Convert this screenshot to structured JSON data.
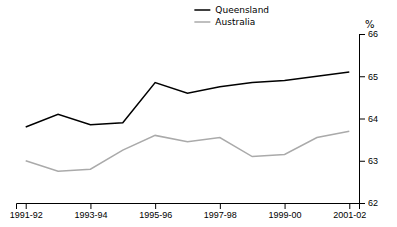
{
  "chart_data": {
    "type": "line",
    "ylabel": "%",
    "categories": [
      "1991-92",
      null,
      "1993-94",
      null,
      "1995-96",
      null,
      "1997-98",
      null,
      "1999-00",
      null,
      "2001-02"
    ],
    "series": [
      {
        "name": "Queensland",
        "color": "#000000",
        "values": [
          63.8,
          64.1,
          63.85,
          63.9,
          64.85,
          64.6,
          64.75,
          64.85,
          64.9,
          65.0,
          65.1
        ]
      },
      {
        "name": "Australia",
        "color": "#aaaaaa",
        "values": [
          63.0,
          62.75,
          62.8,
          63.25,
          63.6,
          63.45,
          63.55,
          63.1,
          63.15,
          63.55,
          63.7
        ]
      }
    ],
    "ylim": [
      62,
      66
    ],
    "yticks": [
      62,
      63,
      64,
      65,
      66
    ],
    "grid": false,
    "legend": "top"
  }
}
